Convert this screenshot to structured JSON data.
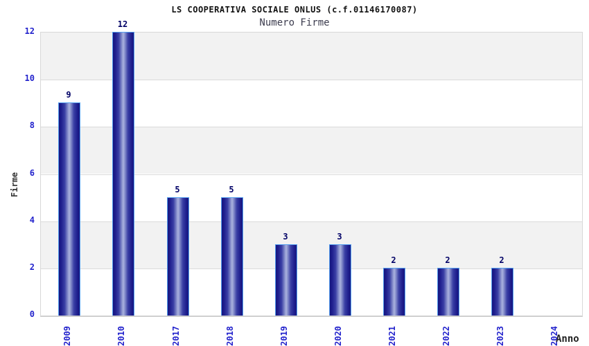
{
  "chart_data": {
    "type": "bar",
    "title": "LS COOPERATIVA SOCIALE ONLUS (c.f.01146170087)",
    "subtitle": "Numero Firme",
    "xlabel": "Anno",
    "ylabel": "Firme",
    "categories": [
      "2009",
      "2010",
      "2017",
      "2018",
      "2019",
      "2020",
      "2021",
      "2022",
      "2023",
      "2024"
    ],
    "values": [
      9,
      12,
      5,
      5,
      3,
      3,
      2,
      2,
      2,
      0
    ],
    "yticks": [
      0,
      2,
      4,
      6,
      8,
      10,
      12
    ],
    "ylim": [
      0,
      12
    ],
    "grid": "horizontal alternating bands",
    "legend": "none",
    "bar_value_labels": [
      "9",
      "12",
      "5",
      "5",
      "3",
      "3",
      "2",
      "2",
      "2",
      ""
    ],
    "colors": {
      "tick_label_blue": "#2222cc",
      "value_label_navy": "#000066",
      "band_gray": "#f2f2f2",
      "band_white": "#ffffff",
      "grid_line": "#dadada",
      "bar_dark": "#17177f",
      "bar_light": "#aab2de",
      "bar_outline": "#55a0f0",
      "title_color": "#111111",
      "subtitle_color": "#3c3c4e",
      "axis_title_color": "#333333"
    }
  }
}
